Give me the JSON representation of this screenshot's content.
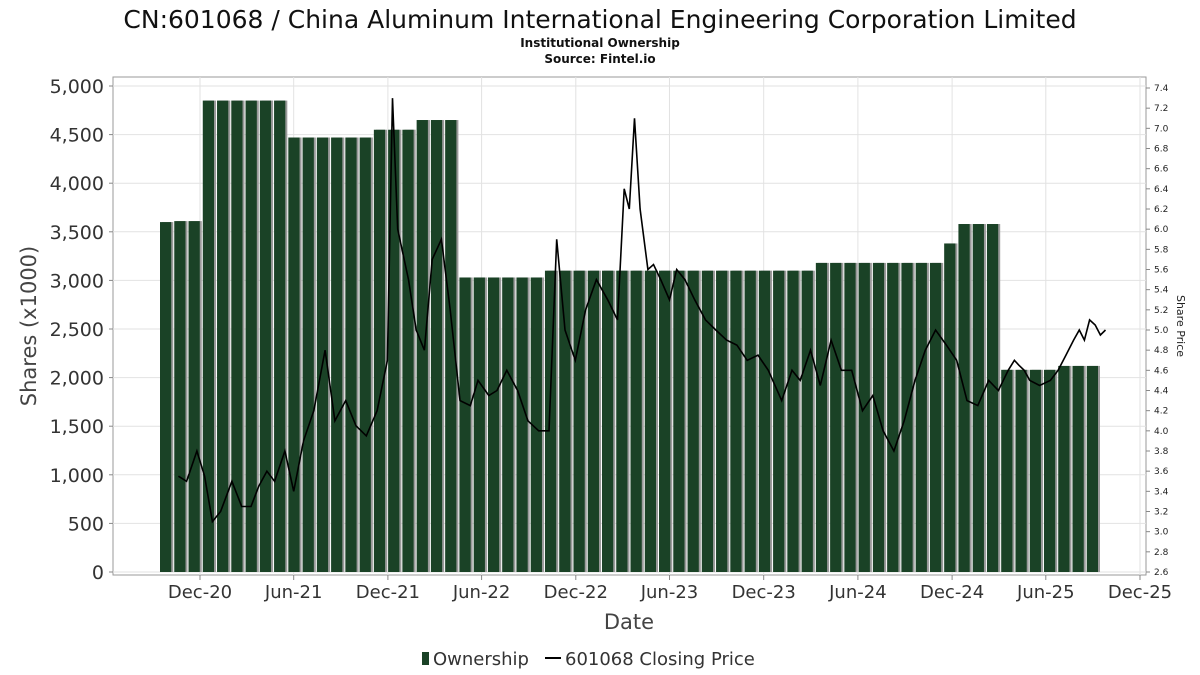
{
  "chart_data": {
    "type": "bar",
    "title": "CN:601068 / China Aluminum International Engineering Corporation Limited",
    "subtitle1": "Institutional Ownership",
    "subtitle2": "Source: Fintel.io",
    "xlabel": "Date",
    "ylabel": "Shares (x1000)",
    "y2label": "Share Price",
    "ylim": [
      0,
      5000
    ],
    "y2lim": [
      2.6,
      7.4
    ],
    "y_ticks": [
      0,
      500,
      1000,
      1500,
      2000,
      2500,
      3000,
      3500,
      4000,
      4500,
      5000
    ],
    "y_tick_labels": [
      "0",
      "500",
      "1,000",
      "1,500",
      "2,000",
      "2,500",
      "3,000",
      "3,500",
      "4,000",
      "4,500",
      "5,000"
    ],
    "y2_ticks": [
      2.6,
      2.8,
      3.0,
      3.2,
      3.4,
      3.6,
      3.8,
      4.0,
      4.2,
      4.4,
      4.6,
      4.8,
      5.0,
      5.2,
      5.4,
      5.6,
      5.8,
      6.0,
      6.2,
      6.4,
      6.6,
      6.8,
      7.0,
      7.2,
      7.4
    ],
    "y2_tick_labels": [
      "2.6",
      "2.8",
      "3.0",
      "3.2",
      "3.4",
      "3.6",
      "3.8",
      "4.0",
      "4.2",
      "4.4",
      "4.6",
      "4.8",
      "5.0",
      "5.2",
      "5.4",
      "5.6",
      "5.8",
      "6.0",
      "6.2",
      "6.4",
      "6.6",
      "6.8",
      "7.0",
      "7.2",
      "7.4"
    ],
    "x_ticks": [
      "Dec-20",
      "Jun-21",
      "Dec-21",
      "Jun-22",
      "Dec-22",
      "Jun-23",
      "Dec-23",
      "Jun-24",
      "Dec-24",
      "Jun-25",
      "Dec-25"
    ],
    "grid": true,
    "legend_position": "bottom",
    "colors": {
      "bar": "#1a4226",
      "bar_shadow": "#9a9a9a",
      "line": "#000000",
      "grid": "#e2e2e2"
    },
    "series": [
      {
        "name": "Ownership",
        "kind": "bar",
        "values": [
          3600,
          3610,
          3610,
          4850,
          4850,
          4850,
          4850,
          4850,
          4850,
          4470,
          4470,
          4470,
          4470,
          4470,
          4470,
          4550,
          4550,
          4550,
          4650,
          4650,
          4650,
          3030,
          3030,
          3030,
          3030,
          3030,
          3030,
          3100,
          3100,
          3100,
          3100,
          3100,
          3100,
          3100,
          3100,
          3100,
          3100,
          3100,
          3100,
          3100,
          3100,
          3100,
          3100,
          3100,
          3100,
          3100,
          3180,
          3180,
          3180,
          3180,
          3180,
          3180,
          3180,
          3180,
          3180,
          3380,
          3580,
          3580,
          3580,
          2080,
          2080,
          2080,
          2080,
          2120,
          2120,
          2120
        ]
      },
      {
        "name": "601068 Closing Price",
        "kind": "line",
        "points": [
          [
            "2020-10-20",
            3.55
          ],
          [
            "2020-11-05",
            3.5
          ],
          [
            "2020-11-25",
            3.8
          ],
          [
            "2020-12-10",
            3.55
          ],
          [
            "2020-12-25",
            3.1
          ],
          [
            "2021-01-10",
            3.2
          ],
          [
            "2021-02-01",
            3.5
          ],
          [
            "2021-02-20",
            3.25
          ],
          [
            "2021-03-10",
            3.25
          ],
          [
            "2021-03-25",
            3.45
          ],
          [
            "2021-04-10",
            3.6
          ],
          [
            "2021-04-25",
            3.5
          ],
          [
            "2021-05-15",
            3.8
          ],
          [
            "2021-06-01",
            3.4
          ],
          [
            "2021-06-20",
            3.9
          ],
          [
            "2021-07-10",
            4.2
          ],
          [
            "2021-08-01",
            4.8
          ],
          [
            "2021-08-20",
            4.1
          ],
          [
            "2021-09-10",
            4.3
          ],
          [
            "2021-09-30",
            4.05
          ],
          [
            "2021-10-20",
            3.95
          ],
          [
            "2021-11-10",
            4.2
          ],
          [
            "2021-11-30",
            4.7
          ],
          [
            "2021-12-10",
            7.3
          ],
          [
            "2021-12-20",
            6.0
          ],
          [
            "2022-01-10",
            5.5
          ],
          [
            "2022-01-25",
            5.0
          ],
          [
            "2022-02-10",
            4.8
          ],
          [
            "2022-02-25",
            5.7
          ],
          [
            "2022-03-15",
            5.9
          ],
          [
            "2022-04-01",
            5.2
          ],
          [
            "2022-04-20",
            4.3
          ],
          [
            "2022-05-10",
            4.25
          ],
          [
            "2022-05-25",
            4.5
          ],
          [
            "2022-06-15",
            4.35
          ],
          [
            "2022-07-01",
            4.4
          ],
          [
            "2022-07-20",
            4.6
          ],
          [
            "2022-08-10",
            4.4
          ],
          [
            "2022-08-30",
            4.1
          ],
          [
            "2022-09-20",
            4.0
          ],
          [
            "2022-10-10",
            4.0
          ],
          [
            "2022-10-25",
            5.9
          ],
          [
            "2022-11-10",
            5.0
          ],
          [
            "2022-11-30",
            4.7
          ],
          [
            "2022-12-20",
            5.2
          ],
          [
            "2023-01-10",
            5.5
          ],
          [
            "2023-02-01",
            5.3
          ],
          [
            "2023-02-20",
            5.1
          ],
          [
            "2023-03-05",
            6.4
          ],
          [
            "2023-03-15",
            6.2
          ],
          [
            "2023-03-25",
            7.1
          ],
          [
            "2023-04-05",
            6.2
          ],
          [
            "2023-04-20",
            5.6
          ],
          [
            "2023-05-01",
            5.65
          ],
          [
            "2023-05-15",
            5.5
          ],
          [
            "2023-06-01",
            5.3
          ],
          [
            "2023-06-15",
            5.6
          ],
          [
            "2023-07-01",
            5.5
          ],
          [
            "2023-07-20",
            5.3
          ],
          [
            "2023-08-10",
            5.1
          ],
          [
            "2023-08-30",
            5.0
          ],
          [
            "2023-09-20",
            4.9
          ],
          [
            "2023-10-10",
            4.85
          ],
          [
            "2023-10-30",
            4.7
          ],
          [
            "2023-11-20",
            4.75
          ],
          [
            "2023-12-10",
            4.6
          ],
          [
            "2024-01-05",
            4.3
          ],
          [
            "2024-01-25",
            4.6
          ],
          [
            "2024-02-10",
            4.5
          ],
          [
            "2024-03-01",
            4.8
          ],
          [
            "2024-03-20",
            4.45
          ],
          [
            "2024-04-10",
            4.9
          ],
          [
            "2024-04-30",
            4.6
          ],
          [
            "2024-05-20",
            4.6
          ],
          [
            "2024-06-10",
            4.2
          ],
          [
            "2024-06-30",
            4.35
          ],
          [
            "2024-07-20",
            4.0
          ],
          [
            "2024-08-10",
            3.8
          ],
          [
            "2024-08-30",
            4.1
          ],
          [
            "2024-09-20",
            4.5
          ],
          [
            "2024-10-10",
            4.8
          ],
          [
            "2024-10-30",
            5.0
          ],
          [
            "2024-11-20",
            4.85
          ],
          [
            "2024-12-10",
            4.7
          ],
          [
            "2024-12-30",
            4.3
          ],
          [
            "2025-01-20",
            4.25
          ],
          [
            "2025-02-10",
            4.5
          ],
          [
            "2025-03-01",
            4.4
          ],
          [
            "2025-03-20",
            4.6
          ],
          [
            "2025-04-01",
            4.7
          ],
          [
            "2025-04-10",
            4.65
          ],
          [
            "2025-04-20",
            4.6
          ],
          [
            "2025-05-01",
            4.5
          ],
          [
            "2025-05-20",
            4.45
          ],
          [
            "2025-06-10",
            4.5
          ],
          [
            "2025-06-25",
            4.6
          ],
          [
            "2025-07-10",
            4.75
          ],
          [
            "2025-07-25",
            4.9
          ],
          [
            "2025-08-05",
            5.0
          ],
          [
            "2025-08-15",
            4.9
          ],
          [
            "2025-08-25",
            5.1
          ],
          [
            "2025-09-05",
            5.05
          ],
          [
            "2025-09-15",
            4.95
          ],
          [
            "2025-09-25",
            5.0
          ]
        ]
      }
    ],
    "legend": [
      "Ownership",
      "601068 Closing Price"
    ]
  }
}
